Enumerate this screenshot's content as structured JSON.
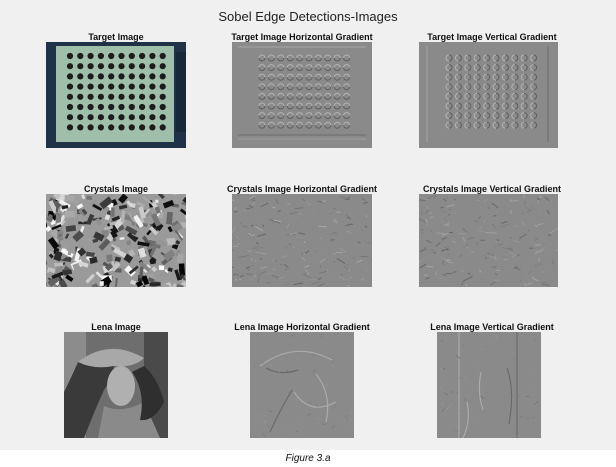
{
  "figure": {
    "title": "Sobel Edge Detections-Images",
    "caption": "Figure 3.a"
  },
  "panels": {
    "target_image": {
      "title": "Target Image",
      "grid_rows": 8,
      "grid_cols": 10
    },
    "target_horizontal": {
      "title": "Target Image Horizontal Gradient"
    },
    "target_vertical": {
      "title": "Target Image Vertical Gradient"
    },
    "crystals_image": {
      "title": "Crystals Image"
    },
    "crystals_horizontal": {
      "title": "Crystals Image Horizontal Gradient"
    },
    "crystals_vertical": {
      "title": "Crystals Image Vertical Gradient"
    },
    "lena_image": {
      "title": "Lena Image"
    },
    "lena_horizontal": {
      "title": "Lena Image Horizontal Gradient"
    },
    "lena_vertical": {
      "title": "Lena Image Vertical Gradient"
    }
  },
  "colors": {
    "figure_background": "#f0f0f0",
    "gradient_gray": "#8a8a8a",
    "target_board": "#9fbfaa",
    "target_border": "#1f3248",
    "target_dots": "#1c1c1c"
  }
}
